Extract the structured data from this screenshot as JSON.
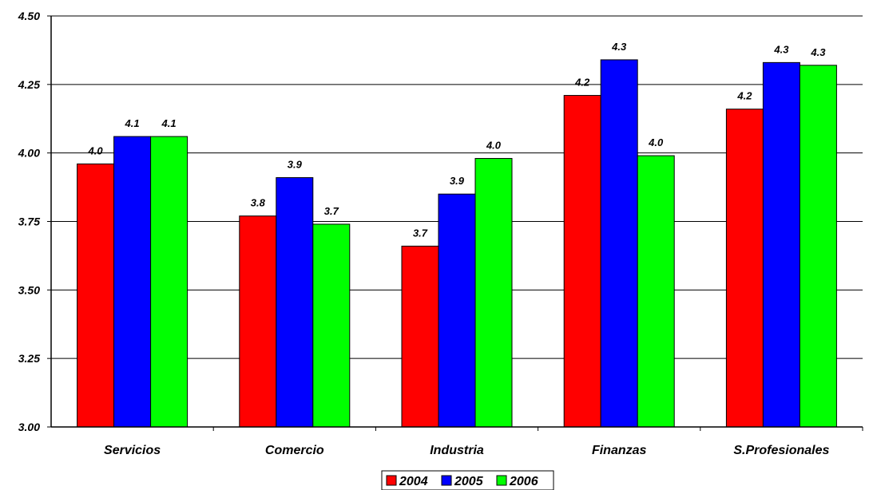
{
  "chart_data": {
    "type": "bar",
    "categories": [
      "Servicios",
      "Comercio",
      "Industria",
      "Finanzas",
      "S.Profesionales"
    ],
    "series": [
      {
        "name": "2004",
        "color": "#ff0000",
        "values": [
          3.96,
          3.77,
          3.66,
          4.21,
          4.16
        ],
        "labels": [
          "4.0",
          "3.8",
          "3.7",
          "4.2",
          "4.2"
        ]
      },
      {
        "name": "2005",
        "color": "#0000ff",
        "values": [
          4.06,
          3.91,
          3.85,
          4.34,
          4.33
        ],
        "labels": [
          "4.1",
          "3.9",
          "3.9",
          "4.3",
          "4.3"
        ]
      },
      {
        "name": "2006",
        "color": "#00ff00",
        "values": [
          4.06,
          3.74,
          3.98,
          3.99,
          4.32
        ],
        "labels": [
          "4.1",
          "3.7",
          "4.0",
          "4.0",
          "4.3"
        ]
      }
    ],
    "ylim": [
      3.0,
      4.5
    ],
    "yticks": [
      3.0,
      3.25,
      3.5,
      3.75,
      4.0,
      4.25,
      4.5
    ],
    "ytick_labels": [
      "3.00",
      "3.25",
      "3.50",
      "3.75",
      "4.00",
      "4.25",
      "4.50"
    ],
    "title": "",
    "xlabel": "",
    "ylabel": "",
    "grid": true,
    "legend_position": "bottom-center"
  }
}
